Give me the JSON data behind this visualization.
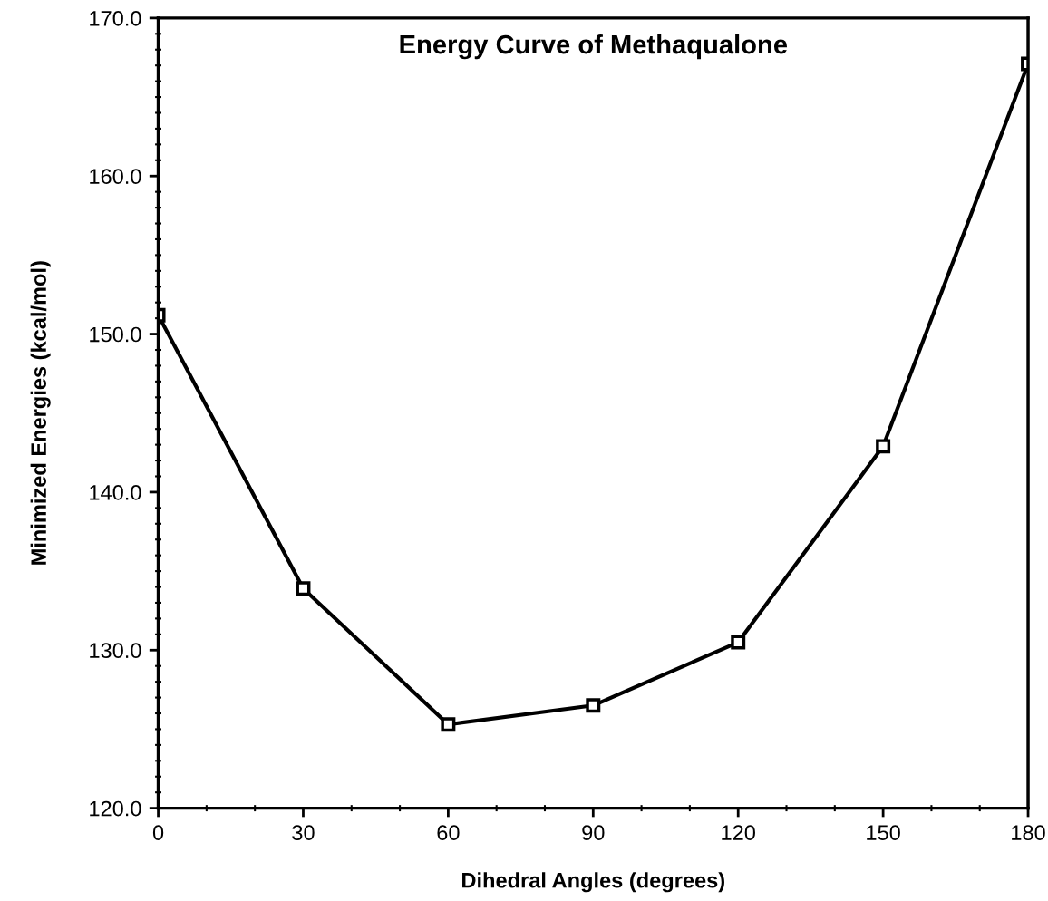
{
  "chart_data": {
    "type": "line",
    "title": "Energy Curve of Methaqualone",
    "xlabel": "Dihedral Angles (degrees)",
    "ylabel": "Minimized Energies (kcal/mol)",
    "x": [
      0,
      30,
      60,
      90,
      120,
      150,
      180
    ],
    "series": [
      {
        "color": "#000000",
        "values": [
          151.2,
          133.9,
          125.3,
          126.5,
          130.5,
          142.9,
          167.1
        ]
      }
    ],
    "xlim": [
      0,
      180
    ],
    "ylim": [
      120,
      170
    ],
    "xticks": [
      0,
      30,
      60,
      90,
      120,
      150,
      180
    ],
    "yticks": [
      {
        "value": 120,
        "label": "120.0"
      },
      {
        "value": 130,
        "label": "130.0"
      },
      {
        "value": 140,
        "label": "140.0"
      },
      {
        "value": 150,
        "label": "150.0"
      },
      {
        "value": 160,
        "label": "160.0"
      },
      {
        "value": 170,
        "label": "170.0"
      }
    ],
    "marker": "square",
    "line_style": "solid",
    "grid": false,
    "legend": false
  }
}
